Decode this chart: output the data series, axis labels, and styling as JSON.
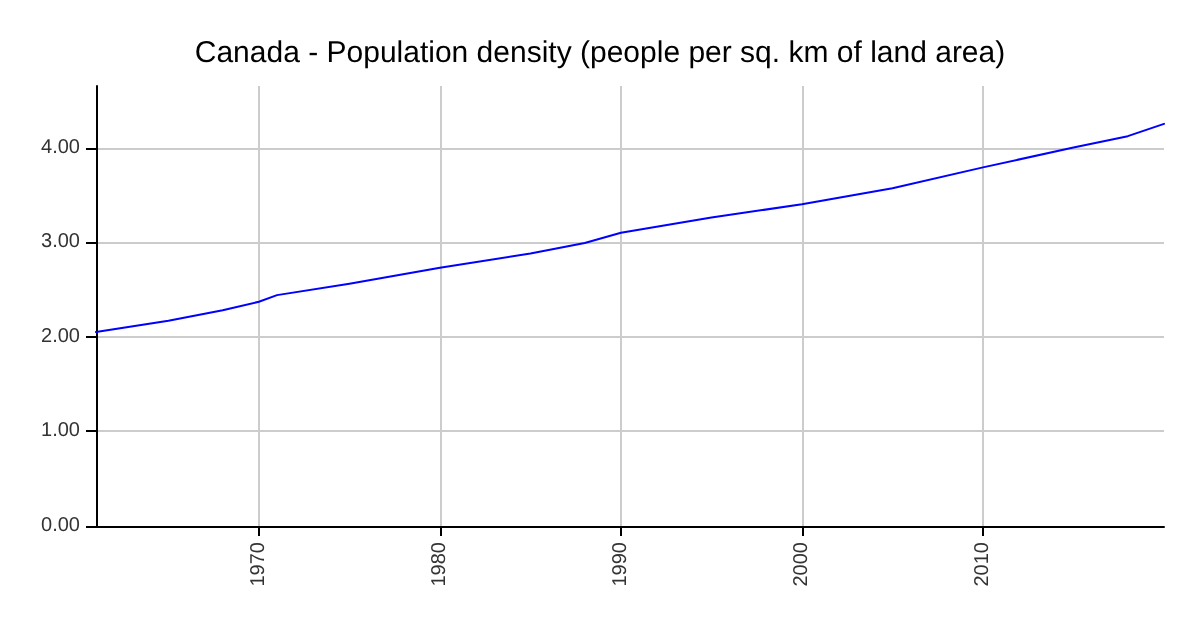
{
  "chart_data": {
    "type": "line",
    "title": "Canada - Population density (people per sq. km of land area)",
    "x": [
      1961,
      1965,
      1968,
      1970,
      1971,
      1975,
      1980,
      1985,
      1988,
      1990,
      1995,
      2000,
      2005,
      2010,
      2015,
      2018,
      2020
    ],
    "series": [
      {
        "color": "#0000ff",
        "values": [
          2.05,
          2.17,
          2.28,
          2.37,
          2.44,
          2.56,
          2.73,
          2.88,
          2.99,
          3.1,
          3.26,
          3.4,
          3.57,
          3.79,
          4.0,
          4.12,
          4.25
        ]
      }
    ],
    "xlim": [
      1961,
      2020
    ],
    "xticks": [
      1970,
      1980,
      1990,
      2000,
      2010
    ],
    "ylim": [
      0,
      4.65
    ],
    "yticks": [
      {
        "value": 0,
        "label": "0.00"
      },
      {
        "value": 1,
        "label": "1.00"
      },
      {
        "value": 2,
        "label": "2.00"
      },
      {
        "value": 3,
        "label": "3.00"
      },
      {
        "value": 4,
        "label": "4.00"
      }
    ],
    "grid": true,
    "marker": "none",
    "line_style": "solid"
  }
}
